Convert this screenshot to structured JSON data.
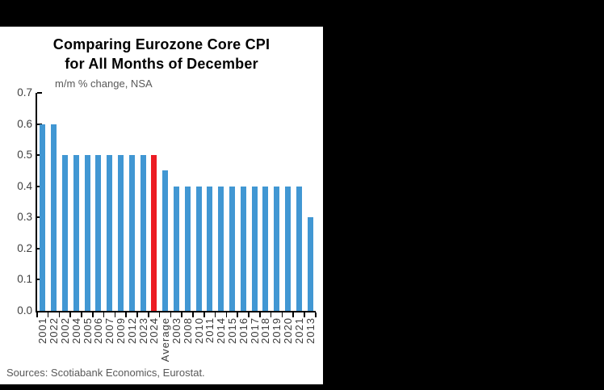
{
  "window": {
    "background": "#000000",
    "panel_background": "#ffffff"
  },
  "chart_data": {
    "type": "bar",
    "title": "Comparing Eurozone Core CPI for All Months of December",
    "title_lines": [
      "Comparing Eurozone Core CPI",
      "for All Months of December"
    ],
    "subtitle": "m/m % change, NSA",
    "xlabel": "",
    "ylabel": "m/m % change, NSA",
    "categories": [
      "2001",
      "2022",
      "2002",
      "2004",
      "2005",
      "2006",
      "2007",
      "2009",
      "2012",
      "2023",
      "2024",
      "Average",
      "2003",
      "2008",
      "2010",
      "2011",
      "2014",
      "2015",
      "2016",
      "2017",
      "2018",
      "2019",
      "2020",
      "2021",
      "2013"
    ],
    "values": [
      0.6,
      0.6,
      0.5,
      0.5,
      0.5,
      0.5,
      0.5,
      0.5,
      0.5,
      0.5,
      0.5,
      0.45,
      0.4,
      0.4,
      0.4,
      0.4,
      0.4,
      0.4,
      0.4,
      0.4,
      0.4,
      0.4,
      0.4,
      0.4,
      0.3
    ],
    "highlight_category": "2024",
    "bar_color": "#4197d3",
    "highlight_color": "#ec1c24",
    "axis_color": "#000000",
    "ylim": [
      0,
      0.7
    ],
    "ytick_labels": [
      "0.7",
      "0.6",
      "0.5",
      "0.4",
      "0.3",
      "0.2",
      "0.1",
      "0.0"
    ],
    "ytick_values": [
      0.7,
      0.6,
      0.5,
      0.4,
      0.3,
      0.2,
      0.1,
      0.0
    ],
    "grid": false,
    "legend": "none",
    "source": "Sources: Scotiabank Economics, Eurostat."
  }
}
